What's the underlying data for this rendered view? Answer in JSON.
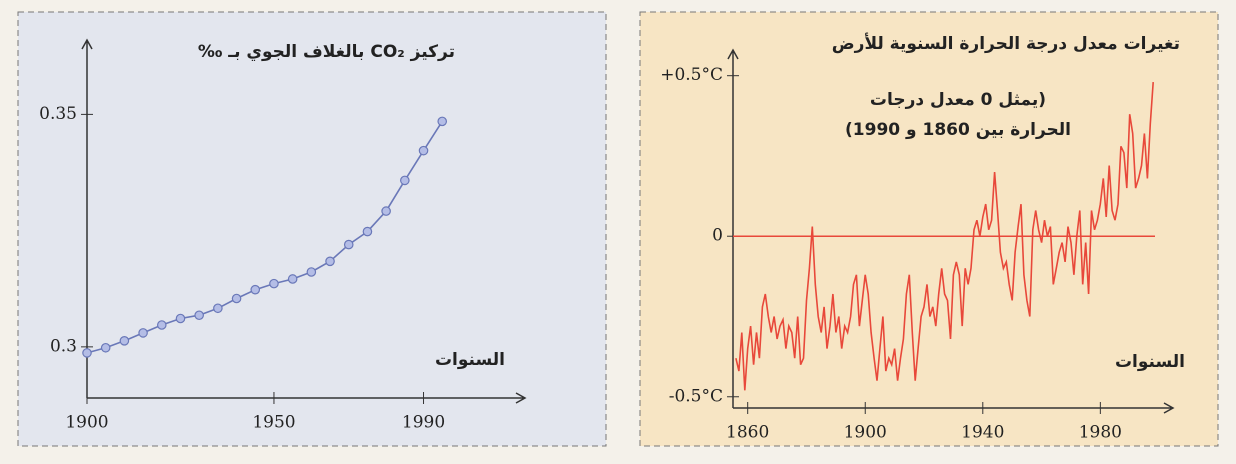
{
  "chart_data": [
    {
      "type": "line",
      "title": "تركيز CO₂ بالغلاف الجوي بـ ‰",
      "x_label": "السنوات",
      "x": [
        1900,
        1905,
        1910,
        1915,
        1920,
        1925,
        1930,
        1935,
        1940,
        1945,
        1950,
        1955,
        1960,
        1965,
        1970,
        1975,
        1980,
        1985,
        1990,
        1995
      ],
      "values": [
        0.2987,
        0.2998,
        0.3013,
        0.303,
        0.3047,
        0.3061,
        0.3068,
        0.3083,
        0.3104,
        0.3123,
        0.3136,
        0.3146,
        0.3161,
        0.3184,
        0.322,
        0.3248,
        0.3292,
        0.3358,
        0.3422,
        0.3485
      ],
      "color": "#6a78b8",
      "markers": true,
      "xlim": [
        1900,
        2015
      ],
      "xticks": [
        1900,
        1950,
        1990
      ],
      "ylim": [
        0.289,
        0.366
      ],
      "yticks": [
        0.3,
        0.35
      ]
    },
    {
      "type": "line",
      "title": "تغيرات معدل درجة الحرارة السنوية للأرض",
      "x_label": "السنوات",
      "annotation": [
        "(يمثل 0 معدل درجات",
        "الحرارة بين 1860 و 1990)"
      ],
      "x": [
        1856,
        1857,
        1858,
        1859,
        1860,
        1861,
        1862,
        1863,
        1864,
        1865,
        1866,
        1867,
        1868,
        1869,
        1870,
        1871,
        1872,
        1873,
        1874,
        1875,
        1876,
        1877,
        1878,
        1879,
        1880,
        1881,
        1882,
        1883,
        1884,
        1885,
        1886,
        1887,
        1888,
        1889,
        1890,
        1891,
        1892,
        1893,
        1894,
        1895,
        1896,
        1897,
        1898,
        1899,
        1900,
        1901,
        1902,
        1903,
        1904,
        1905,
        1906,
        1907,
        1908,
        1909,
        1910,
        1911,
        1912,
        1913,
        1914,
        1915,
        1916,
        1917,
        1918,
        1919,
        1920,
        1921,
        1922,
        1923,
        1924,
        1925,
        1926,
        1927,
        1928,
        1929,
        1930,
        1931,
        1932,
        1933,
        1934,
        1935,
        1936,
        1937,
        1938,
        1939,
        1940,
        1941,
        1942,
        1943,
        1944,
        1945,
        1946,
        1947,
        1948,
        1949,
        1950,
        1951,
        1952,
        1953,
        1954,
        1955,
        1956,
        1957,
        1958,
        1959,
        1960,
        1961,
        1962,
        1963,
        1964,
        1965,
        1966,
        1967,
        1968,
        1969,
        1970,
        1971,
        1972,
        1973,
        1974,
        1975,
        1976,
        1977,
        1978,
        1979,
        1980,
        1981,
        1982,
        1983,
        1984,
        1985,
        1986,
        1987,
        1988,
        1989,
        1990,
        1991,
        1992,
        1993,
        1994,
        1995,
        1996,
        1997,
        1998
      ],
      "values": [
        -0.38,
        -0.42,
        -0.3,
        -0.48,
        -0.35,
        -0.28,
        -0.4,
        -0.3,
        -0.38,
        -0.22,
        -0.18,
        -0.25,
        -0.3,
        -0.25,
        -0.32,
        -0.28,
        -0.26,
        -0.35,
        -0.28,
        -0.3,
        -0.38,
        -0.25,
        -0.4,
        -0.38,
        -0.2,
        -0.1,
        0.03,
        -0.15,
        -0.25,
        -0.3,
        -0.22,
        -0.35,
        -0.28,
        -0.18,
        -0.3,
        -0.25,
        -0.35,
        -0.28,
        -0.3,
        -0.25,
        -0.15,
        -0.12,
        -0.28,
        -0.2,
        -0.12,
        -0.18,
        -0.3,
        -0.38,
        -0.45,
        -0.35,
        -0.25,
        -0.42,
        -0.38,
        -0.4,
        -0.35,
        -0.45,
        -0.38,
        -0.32,
        -0.18,
        -0.12,
        -0.3,
        -0.45,
        -0.35,
        -0.25,
        -0.22,
        -0.15,
        -0.25,
        -0.22,
        -0.28,
        -0.18,
        -0.1,
        -0.18,
        -0.2,
        -0.32,
        -0.12,
        -0.08,
        -0.12,
        -0.28,
        -0.1,
        -0.15,
        -0.1,
        0.02,
        0.05,
        0.0,
        0.06,
        0.1,
        0.02,
        0.05,
        0.2,
        0.08,
        -0.05,
        -0.1,
        -0.08,
        -0.15,
        -0.2,
        -0.05,
        0.03,
        0.1,
        -0.12,
        -0.2,
        -0.25,
        0.02,
        0.08,
        0.02,
        -0.02,
        0.05,
        0.0,
        0.03,
        -0.15,
        -0.1,
        -0.05,
        -0.02,
        -0.08,
        0.03,
        -0.02,
        -0.12,
        0.0,
        0.08,
        -0.15,
        -0.02,
        -0.18,
        0.08,
        0.02,
        0.05,
        0.1,
        0.18,
        0.06,
        0.22,
        0.08,
        0.05,
        0.1,
        0.28,
        0.26,
        0.15,
        0.38,
        0.32,
        0.15,
        0.18,
        0.22,
        0.32,
        0.18,
        0.35,
        0.48
      ],
      "color": "#e8483a",
      "markers": false,
      "zero_line": true,
      "xlim": [
        1855,
        2002
      ],
      "xticks": [
        1860,
        1900,
        1940,
        1980
      ],
      "ylim": [
        -0.535,
        0.58
      ],
      "yticks": [
        {
          "value": 0.5,
          "label": "+0.5°C"
        },
        0,
        {
          "value": -0.5,
          "label": "-0.5°C"
        }
      ]
    }
  ]
}
